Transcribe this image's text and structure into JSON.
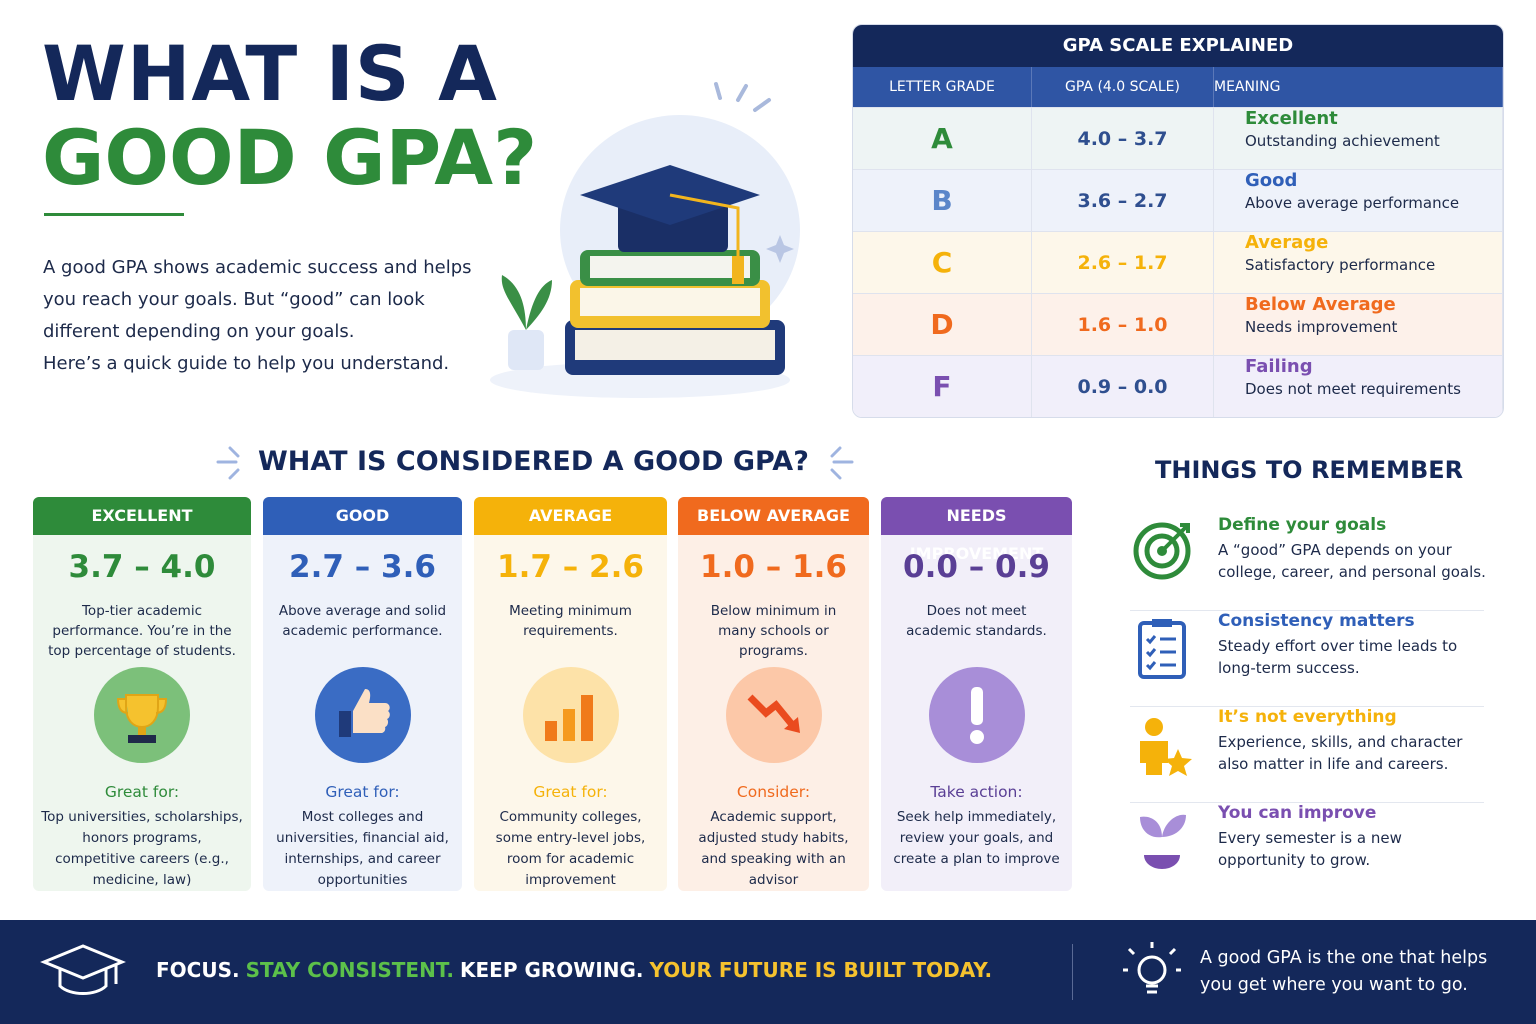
{
  "header": {
    "title_line1": "WHAT IS A",
    "title_line2": "GOOD GPA?",
    "intro": [
      "A good GPA shows academic success and helps",
      "you reach your goals. But “good” can look",
      "different depending on your goals.",
      "Here’s a quick guide to help you understand."
    ]
  },
  "gpa_scale": {
    "title": "GPA SCALE EXPLAINED",
    "columns": [
      "LETTER GRADE",
      "GPA (4.0 SCALE)",
      "MEANING"
    ],
    "rows": [
      {
        "grade": "A",
        "range": "4.0 – 3.7",
        "meaning": "Excellent",
        "description": "Outstanding achievement"
      },
      {
        "grade": "B",
        "range": "3.6 – 2.7",
        "meaning": "Good",
        "description": "Above average performance"
      },
      {
        "grade": "C",
        "range": "2.6 – 1.7",
        "meaning": "Average",
        "description": "Satisfactory performance"
      },
      {
        "grade": "D",
        "range": "1.6 – 1.0",
        "meaning": "Below Average",
        "description": "Needs improvement"
      },
      {
        "grade": "F",
        "range": "0.9 – 0.0",
        "meaning": "Failing",
        "description": "Does not meet requirements"
      }
    ]
  },
  "considered": {
    "title": "WHAT IS CONSIDERED A GOOD GPA?",
    "cards": [
      {
        "label": "EXCELLENT",
        "range": "3.7 – 4.0",
        "description": "Top-tier academic performance. You’re in the top percentage of students.",
        "subheading": "Great for:",
        "details": "Top universities, scholarships, honors programs, competitive careers (e.g., medicine, law)"
      },
      {
        "label": "GOOD",
        "range": "2.7 – 3.6",
        "description": "Above average and solid academic performance.",
        "subheading": "Great for:",
        "details": "Most colleges and universities, financial aid, internships, and career opportunities"
      },
      {
        "label": "AVERAGE",
        "range": "1.7 – 2.6",
        "description": "Meeting minimum requirements.",
        "subheading": "Great for:",
        "details": "Community colleges, some entry-level jobs, room for academic improvement"
      },
      {
        "label": "BELOW AVERAGE",
        "range": "1.0 – 1.6",
        "description": "Below minimum in many schools or programs.",
        "subheading": "Consider:",
        "details": "Academic support, adjusted study habits, and speaking with an advisor"
      },
      {
        "label": "NEEDS IMPROVEMENT",
        "range": "0.0 – 0.9",
        "description": "Does not meet academic standards.",
        "subheading": "Take action:",
        "details": "Seek help immediately, review your goals, and create a plan to improve"
      }
    ]
  },
  "remember": {
    "title": "THINGS TO REMEMBER",
    "items": [
      {
        "title": "Define your goals",
        "text": "A “good” GPA depends on your college, career, and personal goals."
      },
      {
        "title": "Consistency matters",
        "text": "Steady effort over time leads to long-term success."
      },
      {
        "title": "It’s not everything",
        "text": "Experience, skills, and character also matter in life and careers."
      },
      {
        "title": "You can improve",
        "text": "Every semester is a new opportunity to grow."
      }
    ]
  },
  "footer": {
    "slogan": [
      "FOCUS.",
      "STAY CONSISTENT.",
      "KEEP GROWING.",
      "YOUR FUTURE IS BUILT TODAY."
    ],
    "note": "A good GPA is the one that helps you get where you want to go."
  }
}
